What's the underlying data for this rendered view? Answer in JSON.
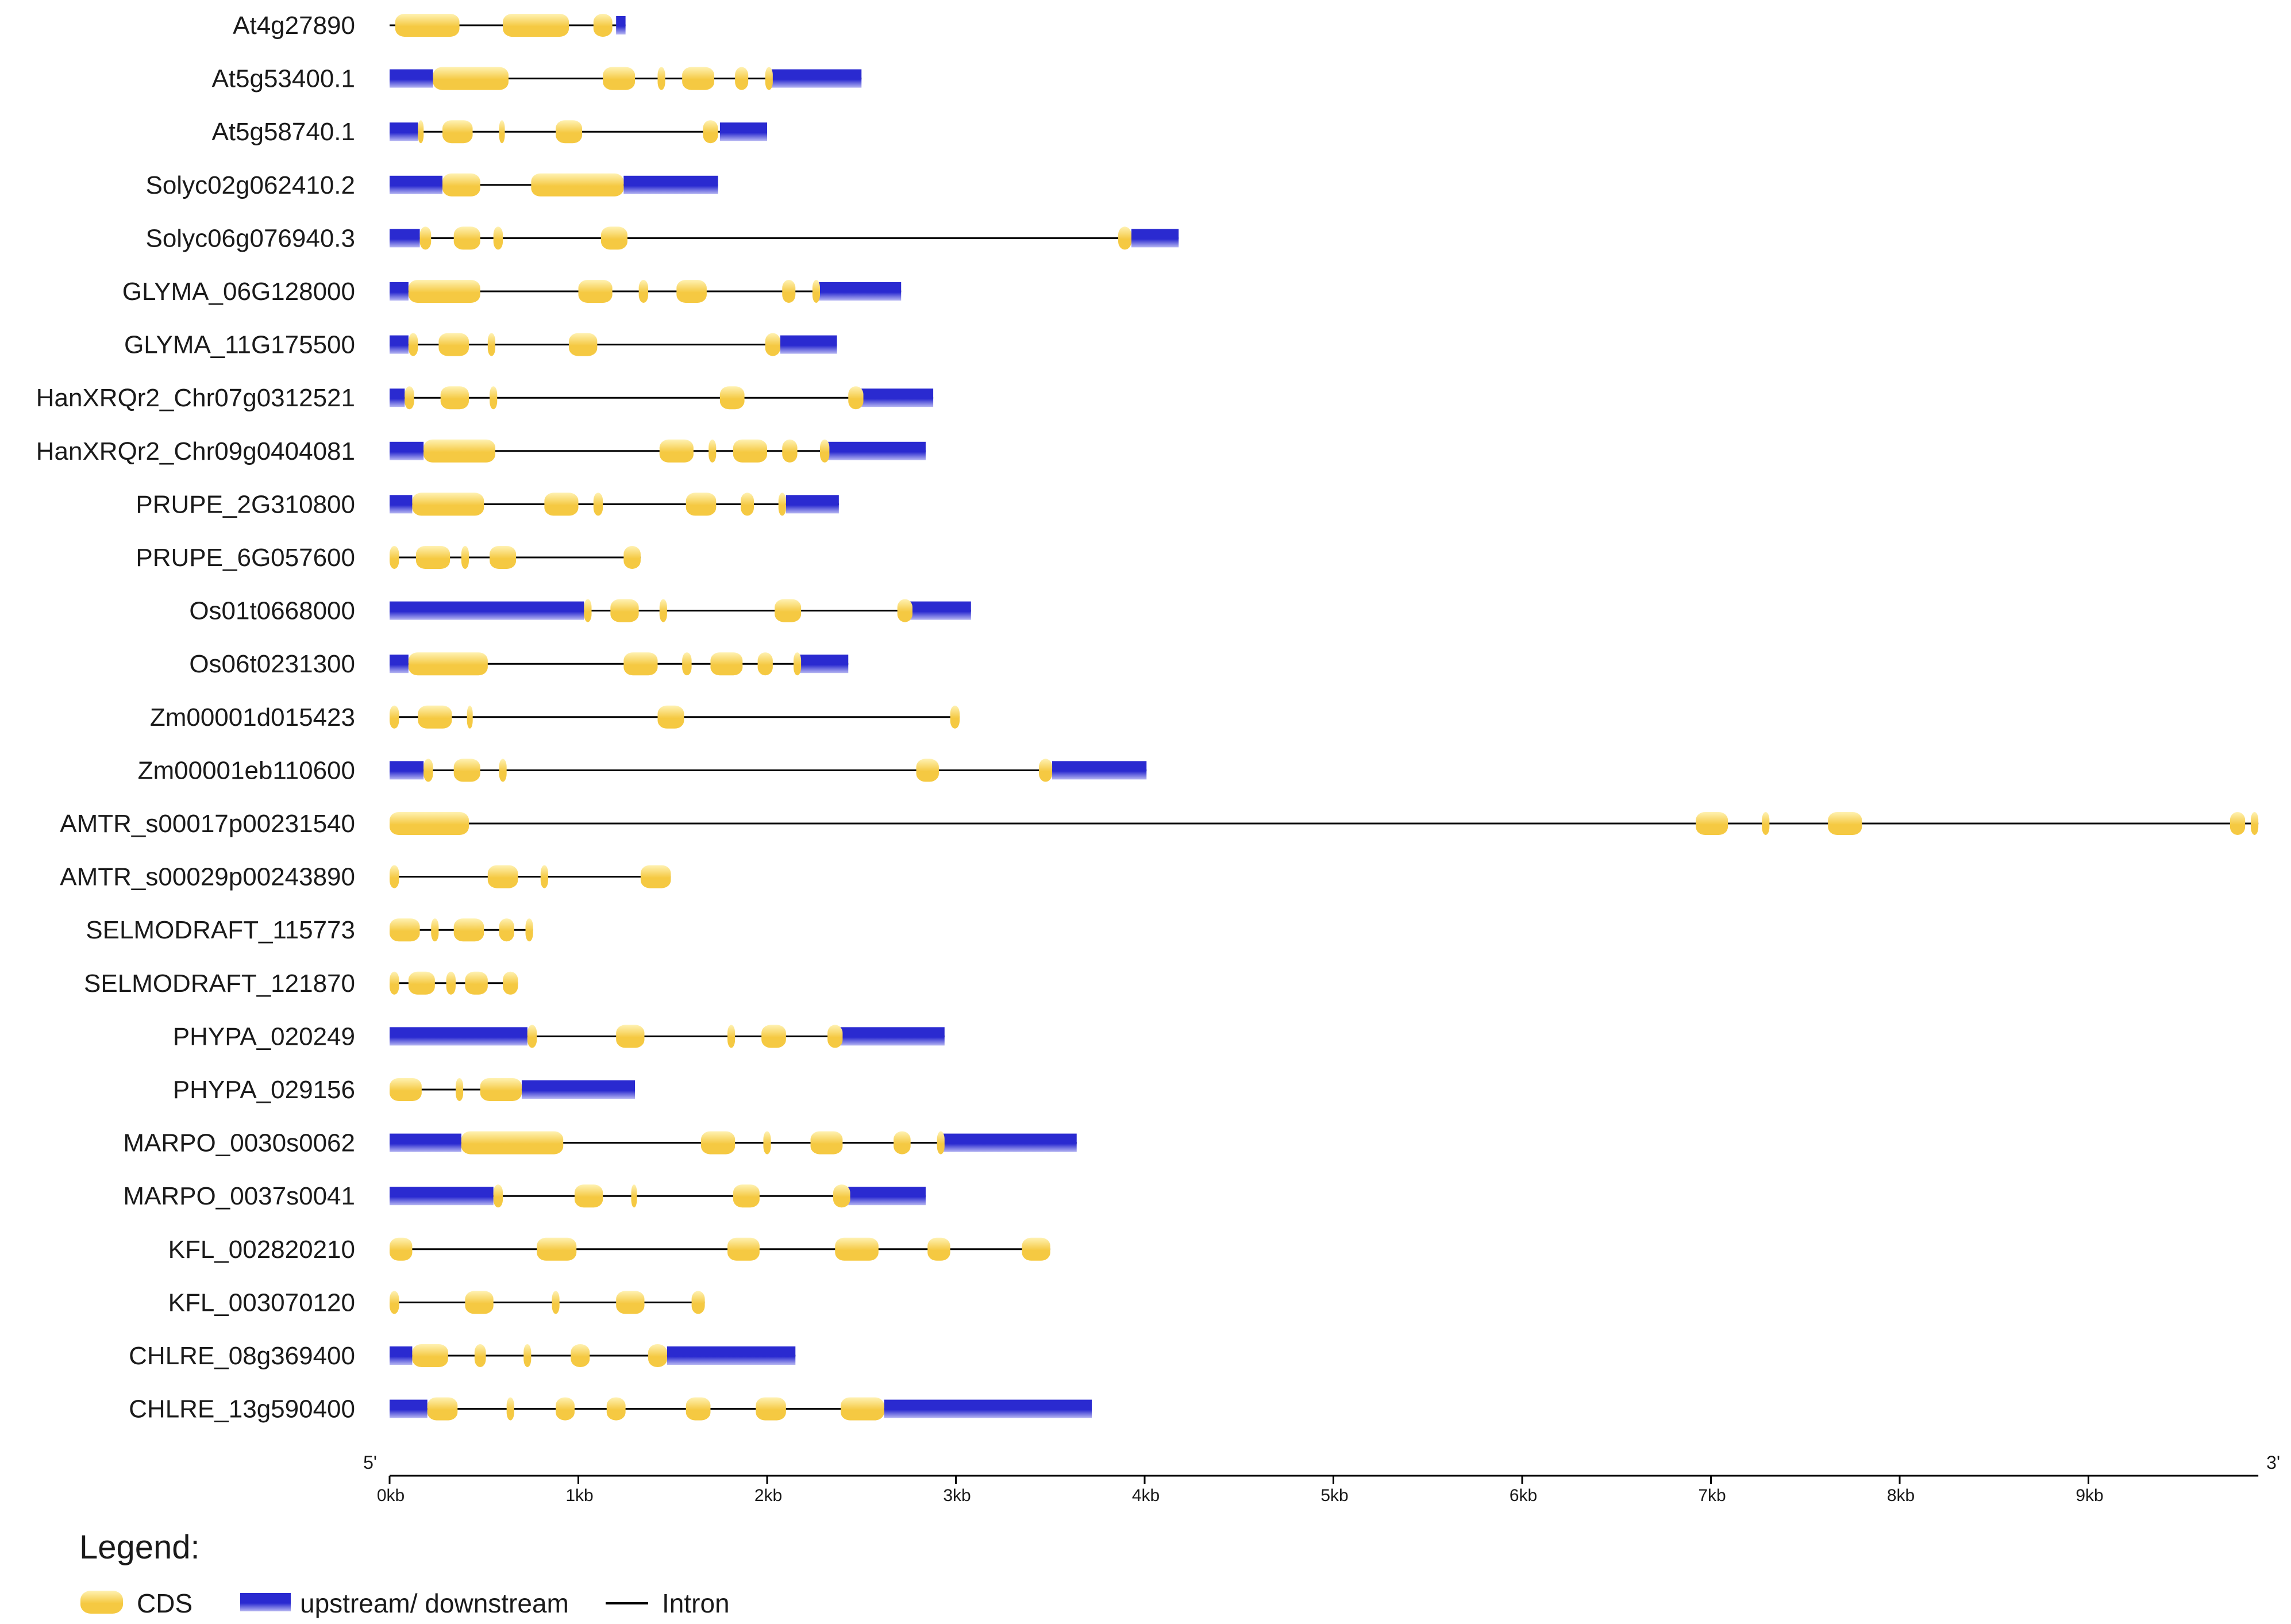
{
  "chart_data": {
    "type": "gene-structure",
    "unit": "kb",
    "x_range_kb": [
      0,
      9.9
    ],
    "axis_start_label": "5'",
    "axis_end_label": "3'",
    "tick_labels": [
      "0kb",
      "1kb",
      "2kb",
      "3kb",
      "4kb",
      "5kb",
      "6kb",
      "7kb",
      "8kb",
      "9kb"
    ],
    "tick_values": [
      0,
      1,
      2,
      3,
      4,
      5,
      6,
      7,
      8,
      9
    ],
    "colors": {
      "cds": "#f5c942",
      "cds_light": "#fff2b3",
      "utr": "#2a2ad0",
      "utr_light": "#b6b6f2",
      "intron": "#000000",
      "axis": "#000000"
    },
    "legend": {
      "title": "Legend:",
      "items": [
        {
          "key": "cds",
          "label": "CDS"
        },
        {
          "key": "utr",
          "label": "upstream/ downstream"
        },
        {
          "key": "intron",
          "label": "Intron"
        }
      ]
    },
    "genes": [
      {
        "name": "At4g27890",
        "length": 1.25,
        "utr": [
          [
            1.2,
            1.25
          ]
        ],
        "cds": [
          [
            0.03,
            0.37
          ],
          [
            0.6,
            0.95
          ],
          [
            1.08,
            1.18
          ]
        ]
      },
      {
        "name": "At5g53400.1",
        "length": 2.5,
        "utr": [
          [
            0,
            0.23
          ],
          [
            2.02,
            2.5
          ]
        ],
        "cds": [
          [
            0.23,
            0.63
          ],
          [
            1.13,
            1.3
          ],
          [
            1.42,
            1.46
          ],
          [
            1.55,
            1.72
          ],
          [
            1.83,
            1.9
          ],
          [
            1.99,
            2.03
          ]
        ]
      },
      {
        "name": "At5g58740.1",
        "length": 2.0,
        "utr": [
          [
            0,
            0.15
          ],
          [
            1.75,
            2.0
          ]
        ],
        "cds": [
          [
            0.15,
            0.18
          ],
          [
            0.28,
            0.44
          ],
          [
            0.58,
            0.6
          ],
          [
            0.88,
            1.02
          ],
          [
            1.66,
            1.74
          ]
        ]
      },
      {
        "name": "Solyc02g062410.2",
        "length": 1.74,
        "utr": [
          [
            0,
            0.28
          ],
          [
            1.24,
            1.74
          ]
        ],
        "cds": [
          [
            0.28,
            0.48
          ],
          [
            0.75,
            1.24
          ]
        ]
      },
      {
        "name": "Solyc06g076940.3",
        "length": 4.18,
        "utr": [
          [
            0,
            0.16
          ],
          [
            3.93,
            4.18
          ]
        ],
        "cds": [
          [
            0.16,
            0.22
          ],
          [
            0.34,
            0.48
          ],
          [
            0.55,
            0.6
          ],
          [
            1.12,
            1.26
          ],
          [
            3.86,
            3.93
          ]
        ]
      },
      {
        "name": "GLYMA_06G128000",
        "length": 2.71,
        "utr": [
          [
            0,
            0.1
          ],
          [
            2.27,
            2.71
          ]
        ],
        "cds": [
          [
            0.1,
            0.48
          ],
          [
            1.0,
            1.18
          ],
          [
            1.32,
            1.37
          ],
          [
            1.52,
            1.68
          ],
          [
            2.08,
            2.15
          ],
          [
            2.24,
            2.28
          ]
        ]
      },
      {
        "name": "GLYMA_11G175500",
        "length": 2.37,
        "utr": [
          [
            0,
            0.1
          ],
          [
            2.07,
            2.37
          ]
        ],
        "cds": [
          [
            0.1,
            0.15
          ],
          [
            0.26,
            0.42
          ],
          [
            0.52,
            0.56
          ],
          [
            0.95,
            1.1
          ],
          [
            1.99,
            2.07
          ]
        ]
      },
      {
        "name": "HanXRQr2_Chr07g0312521",
        "length": 2.88,
        "utr": [
          [
            0,
            0.08
          ],
          [
            2.5,
            2.88
          ]
        ],
        "cds": [
          [
            0.08,
            0.13
          ],
          [
            0.27,
            0.42
          ],
          [
            0.53,
            0.57
          ],
          [
            1.75,
            1.88
          ],
          [
            2.43,
            2.51
          ]
        ]
      },
      {
        "name": "HanXRQr2_Chr09g0404081",
        "length": 2.84,
        "utr": [
          [
            0,
            0.18
          ],
          [
            2.32,
            2.84
          ]
        ],
        "cds": [
          [
            0.18,
            0.56
          ],
          [
            1.43,
            1.61
          ],
          [
            1.69,
            1.73
          ],
          [
            1.82,
            2.0
          ],
          [
            2.08,
            2.16
          ],
          [
            2.28,
            2.33
          ]
        ]
      },
      {
        "name": "PRUPE_2G310800",
        "length": 2.38,
        "utr": [
          [
            0,
            0.12
          ],
          [
            2.1,
            2.38
          ]
        ],
        "cds": [
          [
            0.12,
            0.5
          ],
          [
            0.82,
            1.0
          ],
          [
            1.08,
            1.13
          ],
          [
            1.57,
            1.73
          ],
          [
            1.86,
            1.93
          ],
          [
            2.06,
            2.1
          ]
        ]
      },
      {
        "name": "PRUPE_6G057600",
        "length": 1.33,
        "utr": [],
        "cds": [
          [
            0,
            0.05
          ],
          [
            0.14,
            0.32
          ],
          [
            0.38,
            0.42
          ],
          [
            0.53,
            0.67
          ],
          [
            1.24,
            1.33
          ]
        ]
      },
      {
        "name": "Os01t0668000",
        "length": 3.08,
        "utr": [
          [
            0,
            1.03
          ],
          [
            2.75,
            3.08
          ]
        ],
        "cds": [
          [
            1.03,
            1.07
          ],
          [
            1.17,
            1.32
          ],
          [
            1.43,
            1.47
          ],
          [
            2.04,
            2.18
          ],
          [
            2.69,
            2.77
          ]
        ]
      },
      {
        "name": "Os06t0231300",
        "length": 2.43,
        "utr": [
          [
            0,
            0.1
          ],
          [
            2.17,
            2.43
          ]
        ],
        "cds": [
          [
            0.1,
            0.52
          ],
          [
            1.24,
            1.42
          ],
          [
            1.55,
            1.6
          ],
          [
            1.7,
            1.87
          ],
          [
            1.95,
            2.03
          ],
          [
            2.14,
            2.18
          ]
        ]
      },
      {
        "name": "Zm00001d015423",
        "length": 3.02,
        "utr": [],
        "cds": [
          [
            0,
            0.05
          ],
          [
            0.15,
            0.33
          ],
          [
            0.41,
            0.44
          ],
          [
            1.42,
            1.56
          ],
          [
            2.97,
            3.02
          ]
        ]
      },
      {
        "name": "Zm00001eb110600",
        "length": 4.01,
        "utr": [
          [
            0,
            0.18
          ],
          [
            3.51,
            4.01
          ]
        ],
        "cds": [
          [
            0.18,
            0.23
          ],
          [
            0.34,
            0.48
          ],
          [
            0.58,
            0.62
          ],
          [
            2.79,
            2.91
          ],
          [
            3.44,
            3.51
          ]
        ]
      },
      {
        "name": "AMTR_s00017p00231540",
        "length": 9.9,
        "utr": [],
        "cds": [
          [
            0,
            0.42
          ],
          [
            6.92,
            7.09
          ],
          [
            7.27,
            7.31
          ],
          [
            7.62,
            7.8
          ],
          [
            9.75,
            9.83
          ],
          [
            9.86,
            9.9
          ]
        ]
      },
      {
        "name": "AMTR_s00029p00243890",
        "length": 1.49,
        "utr": [],
        "cds": [
          [
            0,
            0.05
          ],
          [
            0.52,
            0.68
          ],
          [
            0.8,
            0.84
          ],
          [
            1.33,
            1.49
          ]
        ]
      },
      {
        "name": "SELMODRAFT_115773",
        "length": 0.76,
        "utr": [],
        "cds": [
          [
            0,
            0.16
          ],
          [
            0.22,
            0.26
          ],
          [
            0.34,
            0.5
          ],
          [
            0.58,
            0.66
          ],
          [
            0.72,
            0.76
          ]
        ]
      },
      {
        "name": "SELMODRAFT_121870",
        "length": 0.68,
        "utr": [],
        "cds": [
          [
            0,
            0.05
          ],
          [
            0.1,
            0.24
          ],
          [
            0.3,
            0.35
          ],
          [
            0.4,
            0.52
          ],
          [
            0.6,
            0.68
          ]
        ]
      },
      {
        "name": "PHYPA_020249",
        "length": 2.94,
        "utr": [
          [
            0,
            0.73
          ],
          [
            2.38,
            2.94
          ]
        ],
        "cds": [
          [
            0.73,
            0.78
          ],
          [
            1.2,
            1.35
          ],
          [
            1.79,
            1.83
          ],
          [
            1.97,
            2.1
          ],
          [
            2.32,
            2.4
          ]
        ]
      },
      {
        "name": "PHYPA_029156",
        "length": 1.3,
        "utr": [
          [
            0.7,
            1.3
          ]
        ],
        "cds": [
          [
            0,
            0.17
          ],
          [
            0.35,
            0.39
          ],
          [
            0.48,
            0.7
          ]
        ]
      },
      {
        "name": "MARPO_0030s0062",
        "length": 3.64,
        "utr": [
          [
            0,
            0.38
          ],
          [
            2.93,
            3.64
          ]
        ],
        "cds": [
          [
            0.38,
            0.92
          ],
          [
            1.65,
            1.83
          ],
          [
            1.98,
            2.02
          ],
          [
            2.23,
            2.4
          ],
          [
            2.67,
            2.76
          ],
          [
            2.9,
            2.94
          ]
        ]
      },
      {
        "name": "MARPO_0037s0041",
        "length": 2.84,
        "utr": [
          [
            0,
            0.55
          ],
          [
            2.43,
            2.84
          ]
        ],
        "cds": [
          [
            0.55,
            0.6
          ],
          [
            0.98,
            1.13
          ],
          [
            1.28,
            1.31
          ],
          [
            1.82,
            1.96
          ],
          [
            2.35,
            2.44
          ]
        ]
      },
      {
        "name": "KFL_002820210",
        "length": 3.5,
        "utr": [],
        "cds": [
          [
            0,
            0.12
          ],
          [
            0.78,
            0.99
          ],
          [
            1.79,
            1.96
          ],
          [
            2.36,
            2.59
          ],
          [
            2.85,
            2.97
          ],
          [
            3.35,
            3.5
          ]
        ]
      },
      {
        "name": "KFL_003070120",
        "length": 1.67,
        "utr": [],
        "cds": [
          [
            0,
            0.05
          ],
          [
            0.4,
            0.55
          ],
          [
            0.86,
            0.9
          ],
          [
            1.2,
            1.35
          ],
          [
            1.6,
            1.67
          ]
        ]
      },
      {
        "name": "CHLRE_08g369400",
        "length": 2.15,
        "utr": [
          [
            0,
            0.12
          ],
          [
            1.47,
            2.15
          ]
        ],
        "cds": [
          [
            0.12,
            0.31
          ],
          [
            0.45,
            0.51
          ],
          [
            0.71,
            0.75
          ],
          [
            0.96,
            1.06
          ],
          [
            1.37,
            1.47
          ]
        ]
      },
      {
        "name": "CHLRE_13g590400",
        "length": 3.72,
        "utr": [
          [
            0,
            0.2
          ],
          [
            2.62,
            3.72
          ]
        ],
        "cds": [
          [
            0.2,
            0.36
          ],
          [
            0.62,
            0.66
          ],
          [
            0.88,
            0.98
          ],
          [
            1.15,
            1.25
          ],
          [
            1.57,
            1.7
          ],
          [
            1.94,
            2.1
          ],
          [
            2.39,
            2.62
          ]
        ]
      }
    ]
  }
}
